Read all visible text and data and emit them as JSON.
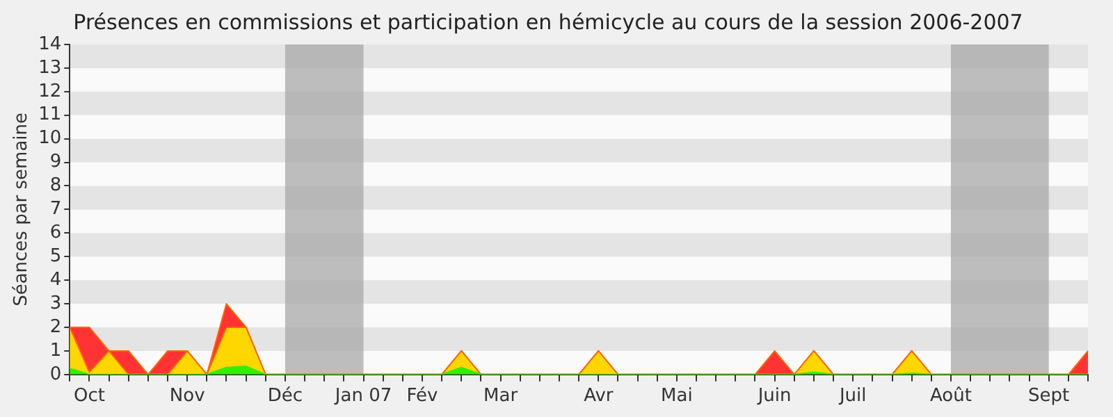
{
  "chart_data": {
    "type": "area",
    "title": "Présences en commissions et participation en hémicycle au cours de la session 2006-2007",
    "ylabel": "Séances par semaine",
    "stacked": true,
    "categories": [
      null,
      "Oct",
      null,
      null,
      null,
      null,
      "Nov",
      null,
      null,
      null,
      null,
      "Déc",
      null,
      null,
      null,
      "Jan 07",
      null,
      null,
      "Fév",
      null,
      null,
      null,
      "Mar",
      null,
      null,
      null,
      null,
      "Avr",
      null,
      null,
      null,
      "Mai",
      null,
      null,
      null,
      null,
      "Juin",
      null,
      null,
      null,
      "Juil",
      null,
      null,
      null,
      null,
      "Août",
      null,
      null,
      null,
      null,
      "Sept",
      null,
      null
    ],
    "series": [
      {
        "color": "#33ee00",
        "values": [
          0.25,
          0,
          0,
          0,
          0,
          0,
          0,
          0,
          0.3,
          0.35,
          0,
          0,
          0,
          0,
          0,
          0,
          0,
          0,
          0,
          0,
          0.3,
          0,
          0,
          0,
          0,
          0,
          0,
          0,
          0,
          0,
          0,
          0,
          0,
          0,
          0,
          0,
          0,
          0,
          0.1,
          0,
          0,
          0,
          0,
          0.05,
          0,
          0,
          0,
          0,
          0,
          0,
          0,
          0,
          0
        ]
      },
      {
        "color": "#ffd700",
        "values": [
          1.75,
          0.1,
          1,
          0,
          0,
          0,
          1,
          0,
          1.7,
          1.65,
          0,
          0,
          0,
          0,
          0,
          0,
          0,
          0,
          0,
          0,
          0.7,
          0,
          0,
          0,
          0,
          0,
          0,
          1,
          0,
          0,
          0,
          0,
          0,
          0,
          0,
          0,
          0,
          0,
          0.9,
          0,
          0,
          0,
          0,
          0.95,
          0,
          0,
          0,
          0,
          0,
          0,
          0,
          0,
          0
        ]
      },
      {
        "color": "#ff3333",
        "values": [
          0,
          1.9,
          0,
          1,
          0,
          1,
          0,
          0,
          1,
          0,
          0,
          0,
          0,
          0,
          0,
          0,
          0,
          0,
          0,
          0,
          0,
          0,
          0,
          0,
          0,
          0,
          0,
          0,
          0,
          0,
          0,
          0,
          0,
          0,
          0,
          0,
          1,
          0,
          0,
          0,
          0,
          0,
          0,
          0,
          0,
          0,
          0,
          0,
          0,
          0,
          0,
          0,
          1
        ]
      }
    ],
    "ylim": [
      0,
      14
    ],
    "yticks": [
      0,
      1,
      2,
      3,
      4,
      5,
      6,
      7,
      8,
      9,
      10,
      11,
      12,
      13,
      14
    ],
    "bands": [
      {
        "axis": "x",
        "from": "Déc",
        "to": "Jan 07",
        "color": "#a8a8a8"
      },
      {
        "axis": "x",
        "from": "Août",
        "to": "Sept",
        "color": "#a8a8a8"
      }
    ]
  }
}
